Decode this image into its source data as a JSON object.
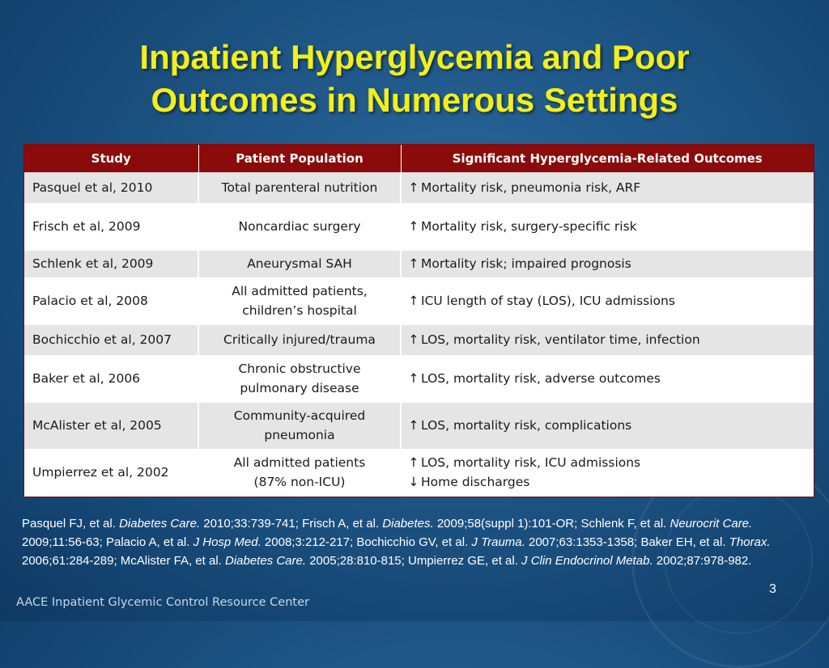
{
  "slide": {
    "title_line1": "Inpatient Hyperglycemia and Poor",
    "title_line2": "Outcomes in Numerous Settings",
    "page_number": "3",
    "footer": "AACE Inpatient Glycemic Control Resource Center"
  },
  "colors": {
    "title": "#f2ef1a",
    "header_bg": "#8b0a0a",
    "background": "#1d5585"
  },
  "table": {
    "headers": [
      "Study",
      "Patient Population",
      "Significant Hyperglycemia-Related Outcomes"
    ],
    "rows": [
      {
        "study": "Pasquel et al, 2010",
        "population": [
          "Total parenteral nutrition"
        ],
        "outcomes": [
          {
            "arrow": "↑",
            "text": "Mortality risk, pneumonia risk, ARF"
          }
        ]
      },
      {
        "study": "Frisch et al, 2009",
        "population": [
          "Noncardiac surgery"
        ],
        "outcomes": [
          {
            "arrow": "↑",
            "text": "Mortality risk, surgery-specific risk"
          }
        ]
      },
      {
        "study": "Schlenk et al, 2009",
        "population": [
          "Aneurysmal SAH"
        ],
        "outcomes": [
          {
            "arrow": "↑",
            "text": "Mortality risk; impaired prognosis"
          }
        ]
      },
      {
        "study": "Palacio et al, 2008",
        "population": [
          "All admitted patients,",
          "children’s hospital"
        ],
        "outcomes": [
          {
            "arrow": "↑",
            "text": "ICU length of stay (LOS), ICU admissions"
          }
        ]
      },
      {
        "study": "Bochicchio et al, 2007",
        "population": [
          "Critically injured/trauma"
        ],
        "outcomes": [
          {
            "arrow": "↑",
            "text": "LOS, mortality risk, ventilator time, infection"
          }
        ]
      },
      {
        "study": "Baker et al, 2006",
        "population": [
          "Chronic obstructive",
          "pulmonary disease"
        ],
        "outcomes": [
          {
            "arrow": "↑",
            "text": "LOS, mortality risk, adverse outcomes"
          }
        ]
      },
      {
        "study": "McAlister et al, 2005",
        "population": [
          "Community-acquired",
          "pneumonia"
        ],
        "outcomes": [
          {
            "arrow": "↑",
            "text": "LOS, mortality risk, complications"
          }
        ]
      },
      {
        "study": "Umpierrez et al, 2002",
        "population": [
          "All admitted patients",
          "(87% non-ICU)"
        ],
        "outcomes": [
          {
            "arrow": "↑",
            "text": "LOS, mortality risk, ICU admissions"
          },
          {
            "arrow": "↓",
            "text": "Home discharges"
          }
        ]
      }
    ]
  },
  "references": [
    {
      "authors": "Pasquel FJ, et al. ",
      "journal": "Diabetes Care.",
      "details": " 2010;33:739-741; "
    },
    {
      "authors": "Frisch A, et al. ",
      "journal": "Diabetes.",
      "details": " 2009;58(suppl 1):101-OR; "
    },
    {
      "authors": "Schlenk F, et al. ",
      "journal": "Neurocrit Care.",
      "details": " 2009;11:56-63; "
    },
    {
      "authors": "Palacio A, et al. ",
      "journal": "J Hosp Med.",
      "details": " 2008;3:212-217; "
    },
    {
      "authors": "Bochicchio GV, et al. ",
      "journal": "J Trauma.",
      "details": " 2007;63:1353-1358; "
    },
    {
      "authors": "Baker EH, et al. ",
      "journal": "Thorax.",
      "details": " 2006;61:284-289; "
    },
    {
      "authors": "McAlister FA, et al. ",
      "journal": "Diabetes Care.",
      "details": " 2005;28:810-815; "
    },
    {
      "authors": "Umpierrez GE, et al. ",
      "journal": "J Clin Endocrinol Metab.",
      "details": " 2002;87:978-982."
    }
  ]
}
